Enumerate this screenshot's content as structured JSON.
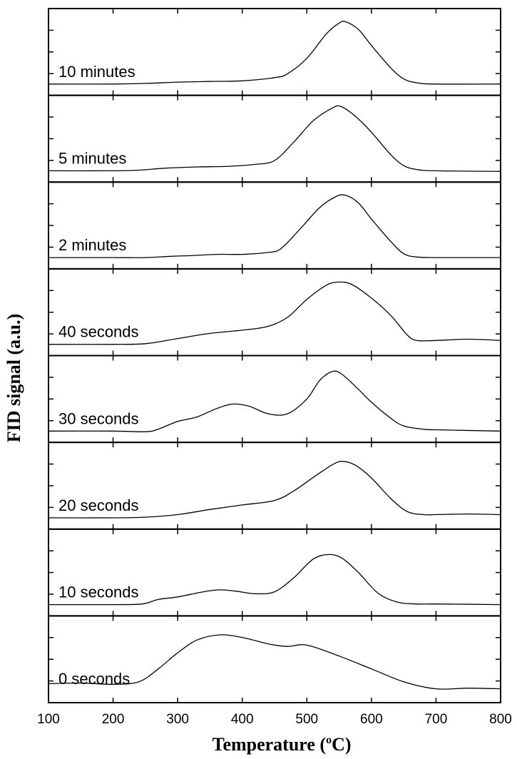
{
  "chart_data": {
    "type": "line",
    "xlabel": "Temperature (",
    "xlabel_superscript": "o",
    "xlabel_unit": "C)",
    "ylabel": "FID signal (a.u.)",
    "xlim": [
      100,
      800
    ],
    "ylim": [
      0,
      1
    ],
    "x_ticks": [
      100,
      200,
      300,
      400,
      500,
      600,
      700,
      800
    ],
    "x_tick_labels": [
      "100",
      "200",
      "300",
      "400",
      "500",
      "600",
      "700",
      "800"
    ],
    "grid": false,
    "legend": "none",
    "panels": [
      {
        "label": "10 minutes",
        "points": [
          [
            100,
            0
          ],
          [
            200,
            0
          ],
          [
            250,
            0.01
          ],
          [
            300,
            0.03
          ],
          [
            350,
            0.04
          ],
          [
            400,
            0.05
          ],
          [
            450,
            0.1
          ],
          [
            470,
            0.16
          ],
          [
            500,
            0.4
          ],
          [
            530,
            0.78
          ],
          [
            550,
            0.95
          ],
          [
            560,
            0.97
          ],
          [
            580,
            0.85
          ],
          [
            600,
            0.6
          ],
          [
            630,
            0.25
          ],
          [
            650,
            0.08
          ],
          [
            670,
            0.02
          ],
          [
            700,
            0
          ],
          [
            800,
            0
          ]
        ]
      },
      {
        "label": "5 minutes",
        "points": [
          [
            100,
            0
          ],
          [
            200,
            0
          ],
          [
            240,
            0.01
          ],
          [
            280,
            0.04
          ],
          [
            330,
            0.06
          ],
          [
            380,
            0.07
          ],
          [
            420,
            0.1
          ],
          [
            450,
            0.16
          ],
          [
            480,
            0.45
          ],
          [
            510,
            0.78
          ],
          [
            540,
            0.98
          ],
          [
            553,
            1.0
          ],
          [
            575,
            0.85
          ],
          [
            600,
            0.6
          ],
          [
            630,
            0.25
          ],
          [
            650,
            0.08
          ],
          [
            670,
            0.02
          ],
          [
            700,
            0
          ],
          [
            800,
            -0.01
          ]
        ]
      },
      {
        "label": "2 minutes",
        "points": [
          [
            100,
            0
          ],
          [
            200,
            0
          ],
          [
            250,
            0
          ],
          [
            290,
            0.02
          ],
          [
            320,
            0.03
          ],
          [
            360,
            0.05
          ],
          [
            400,
            0.05
          ],
          [
            440,
            0.08
          ],
          [
            460,
            0.14
          ],
          [
            490,
            0.45
          ],
          [
            520,
            0.78
          ],
          [
            545,
            0.95
          ],
          [
            560,
            0.97
          ],
          [
            580,
            0.85
          ],
          [
            600,
            0.6
          ],
          [
            630,
            0.25
          ],
          [
            650,
            0.06
          ],
          [
            670,
            0.01
          ],
          [
            700,
            0
          ],
          [
            800,
            0
          ]
        ]
      },
      {
        "label": "40 seconds",
        "points": [
          [
            100,
            0
          ],
          [
            200,
            0
          ],
          [
            250,
            0.01
          ],
          [
            300,
            0.09
          ],
          [
            350,
            0.17
          ],
          [
            400,
            0.22
          ],
          [
            440,
            0.28
          ],
          [
            470,
            0.42
          ],
          [
            500,
            0.7
          ],
          [
            530,
            0.92
          ],
          [
            550,
            0.97
          ],
          [
            570,
            0.93
          ],
          [
            600,
            0.72
          ],
          [
            630,
            0.45
          ],
          [
            655,
            0.15
          ],
          [
            670,
            0.06
          ],
          [
            700,
            0.06
          ],
          [
            750,
            0.08
          ],
          [
            800,
            0.06
          ]
        ]
      },
      {
        "label": "30 seconds",
        "points": [
          [
            100,
            0
          ],
          [
            200,
            0
          ],
          [
            250,
            -0.01
          ],
          [
            270,
            0.03
          ],
          [
            300,
            0.15
          ],
          [
            330,
            0.22
          ],
          [
            360,
            0.35
          ],
          [
            385,
            0.42
          ],
          [
            410,
            0.39
          ],
          [
            440,
            0.27
          ],
          [
            470,
            0.27
          ],
          [
            500,
            0.5
          ],
          [
            520,
            0.79
          ],
          [
            540,
            0.93
          ],
          [
            555,
            0.88
          ],
          [
            580,
            0.65
          ],
          [
            600,
            0.45
          ],
          [
            630,
            0.2
          ],
          [
            650,
            0.08
          ],
          [
            680,
            0.03
          ],
          [
            700,
            0.02
          ],
          [
            800,
            0
          ]
        ]
      },
      {
        "label": "20 seconds",
        "points": [
          [
            100,
            0
          ],
          [
            200,
            0
          ],
          [
            250,
            0.01
          ],
          [
            300,
            0.05
          ],
          [
            350,
            0.13
          ],
          [
            400,
            0.2
          ],
          [
            450,
            0.27
          ],
          [
            480,
            0.42
          ],
          [
            510,
            0.63
          ],
          [
            540,
            0.83
          ],
          [
            555,
            0.88
          ],
          [
            575,
            0.82
          ],
          [
            600,
            0.62
          ],
          [
            630,
            0.3
          ],
          [
            655,
            0.1
          ],
          [
            680,
            0.05
          ],
          [
            700,
            0.05
          ],
          [
            750,
            0.06
          ],
          [
            800,
            0.05
          ]
        ]
      },
      {
        "label": "10 seconds",
        "points": [
          [
            100,
            0
          ],
          [
            200,
            0
          ],
          [
            245,
            0.01
          ],
          [
            270,
            0.08
          ],
          [
            300,
            0.12
          ],
          [
            340,
            0.2
          ],
          [
            365,
            0.23
          ],
          [
            390,
            0.21
          ],
          [
            420,
            0.17
          ],
          [
            450,
            0.2
          ],
          [
            480,
            0.42
          ],
          [
            510,
            0.71
          ],
          [
            535,
            0.78
          ],
          [
            555,
            0.72
          ],
          [
            580,
            0.5
          ],
          [
            610,
            0.18
          ],
          [
            640,
            0.04
          ],
          [
            670,
            0.01
          ],
          [
            700,
            0.01
          ],
          [
            800,
            0
          ]
        ]
      },
      {
        "label": "0 seconds",
        "points": [
          [
            100,
            0.12
          ],
          [
            150,
            0.13
          ],
          [
            200,
            0.11
          ],
          [
            240,
            0.15
          ],
          [
            270,
            0.35
          ],
          [
            300,
            0.6
          ],
          [
            330,
            0.8
          ],
          [
            365,
            0.88
          ],
          [
            400,
            0.84
          ],
          [
            440,
            0.74
          ],
          [
            470,
            0.7
          ],
          [
            500,
            0.72
          ],
          [
            550,
            0.55
          ],
          [
            600,
            0.35
          ],
          [
            650,
            0.15
          ],
          [
            700,
            0.04
          ],
          [
            750,
            0.05
          ],
          [
            800,
            0.04
          ]
        ]
      }
    ]
  }
}
